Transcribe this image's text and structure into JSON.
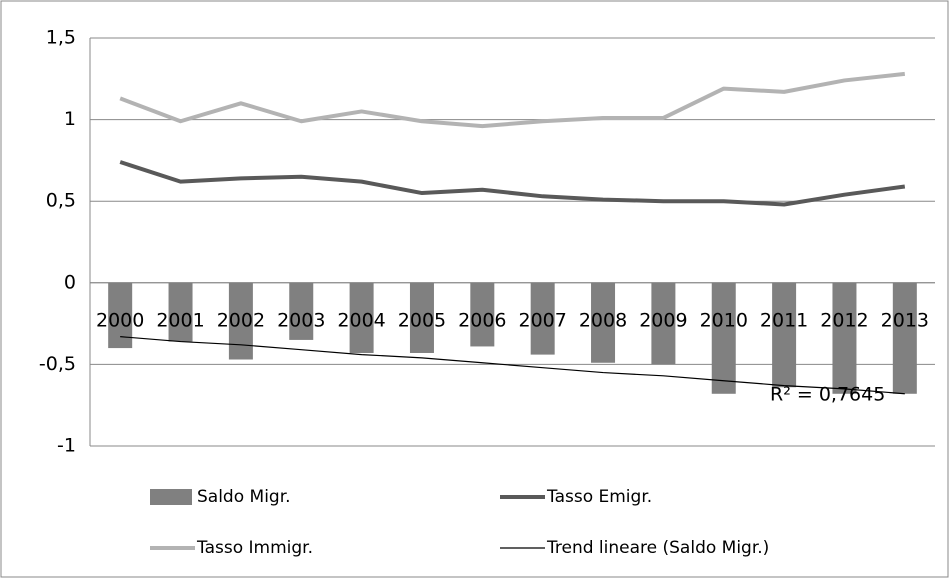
{
  "chart_data": {
    "type": "bar",
    "categories": [
      "2000",
      "2001",
      "2002",
      "2003",
      "2004",
      "2005",
      "2006",
      "2007",
      "2008",
      "2009",
      "2010",
      "2011",
      "2012",
      "2013"
    ],
    "series": [
      {
        "name": "Saldo Migr.",
        "type": "bar",
        "color": "#808080",
        "values": [
          -0.4,
          -0.36,
          -0.47,
          -0.35,
          -0.43,
          -0.43,
          -0.39,
          -0.44,
          -0.49,
          -0.5,
          -0.68,
          -0.64,
          -0.68,
          -0.68
        ]
      },
      {
        "name": "Tasso Emigr.",
        "type": "line",
        "color": "#595959",
        "values": [
          0.74,
          0.62,
          0.64,
          0.65,
          0.62,
          0.55,
          0.57,
          0.53,
          0.51,
          0.5,
          0.5,
          0.48,
          0.54,
          0.59
        ]
      },
      {
        "name": "Tasso Immigr.",
        "type": "line",
        "color": "#b3b3b3",
        "values": [
          1.13,
          0.99,
          1.1,
          0.99,
          1.05,
          0.99,
          0.96,
          0.99,
          1.01,
          1.01,
          1.19,
          1.17,
          1.24,
          1.28
        ]
      },
      {
        "name": "Trend lineare (Saldo Migr.)",
        "type": "trend",
        "color": "#000000",
        "values": [
          -0.33,
          -0.36,
          -0.38,
          -0.41,
          -0.44,
          -0.46,
          -0.49,
          -0.52,
          -0.55,
          -0.57,
          -0.6,
          -0.63,
          -0.65,
          -0.68
        ]
      }
    ],
    "annotation": "R² = 0,7645",
    "ylim": [
      -1,
      1.5
    ],
    "yticks": [
      -1,
      {
        "value": -0.5,
        "label": "-0,5"
      },
      0,
      {
        "value": 0.5,
        "label": "0,5"
      },
      1,
      {
        "value": 1.5,
        "label": "1,5"
      }
    ],
    "grid": true
  }
}
